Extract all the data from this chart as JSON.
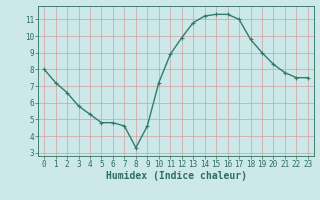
{
  "x": [
    0,
    1,
    2,
    3,
    4,
    5,
    6,
    7,
    8,
    9,
    10,
    11,
    12,
    13,
    14,
    15,
    16,
    17,
    18,
    19,
    20,
    21,
    22,
    23
  ],
  "y": [
    8.0,
    7.2,
    6.6,
    5.8,
    5.3,
    4.8,
    4.8,
    4.6,
    3.3,
    4.6,
    7.2,
    8.9,
    9.9,
    10.8,
    11.2,
    11.3,
    11.3,
    11.0,
    9.8,
    9.0,
    8.3,
    7.8,
    7.5,
    7.5
  ],
  "line_color": "#2e7d6e",
  "marker": "+",
  "marker_size": 3,
  "bg_color": "#cce8e8",
  "grid_color": "#d4a0a0",
  "xlabel": "Humidex (Indice chaleur)",
  "xlabel_fontsize": 7,
  "xlim": [
    -0.5,
    23.5
  ],
  "ylim": [
    2.8,
    11.8
  ],
  "yticks": [
    3,
    4,
    5,
    6,
    7,
    8,
    9,
    10,
    11
  ],
  "xticks": [
    0,
    1,
    2,
    3,
    4,
    5,
    6,
    7,
    8,
    9,
    10,
    11,
    12,
    13,
    14,
    15,
    16,
    17,
    18,
    19,
    20,
    21,
    22,
    23
  ],
  "tick_fontsize": 5.5,
  "axis_color": "#2e6e60",
  "line_width": 1.0,
  "marker_edge_width": 0.8
}
